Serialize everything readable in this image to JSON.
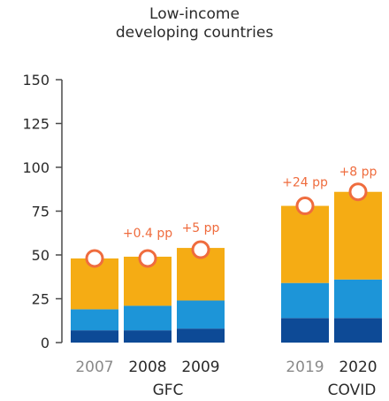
{
  "title_line1": "Low-income",
  "title_line2": "developing countries",
  "colors": {
    "dark_blue": "#0d4a96",
    "mid_blue": "#1d95d8",
    "orange": "#f5ac14",
    "marker": "#ef6c3e",
    "axis": "#4a4a4a",
    "label_dark": "#2a2a2a",
    "label_grey": "#8a8a8a"
  },
  "chart_data": {
    "type": "bar",
    "stacked": true,
    "categories": [
      "2007",
      "2008",
      "2009",
      "2019",
      "2020"
    ],
    "category_emphasis": [
      "grey",
      "dark",
      "dark",
      "grey",
      "dark"
    ],
    "series": [
      {
        "values": [
          7,
          7,
          8,
          14,
          14
        ]
      },
      {
        "values": [
          12,
          14,
          16,
          20,
          22
        ]
      },
      {
        "values": [
          29,
          28,
          30,
          44,
          50
        ]
      }
    ],
    "markers": [
      48,
      48,
      53,
      78,
      86
    ],
    "annotations": [
      "",
      "+0.4 pp",
      "+5 pp",
      "+24 pp",
      "+8 pp"
    ],
    "groups": [
      {
        "label": "GFC"
      },
      {
        "label": "COVID"
      }
    ],
    "yticks": [
      0,
      25,
      50,
      75,
      100,
      125,
      150
    ],
    "ylim": [
      0,
      150
    ],
    "grid": false
  }
}
